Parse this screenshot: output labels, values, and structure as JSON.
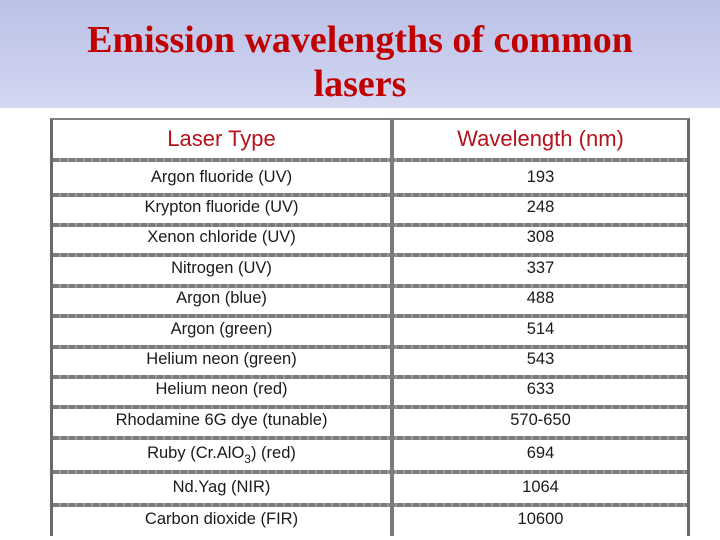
{
  "slide": {
    "title_line1": "Emission wavelengths of common",
    "title_line2": "lasers"
  },
  "table": {
    "headers": {
      "laser_type": "Laser Type",
      "wavelength": "Wavelength (nm)"
    },
    "rows": [
      {
        "laser_type": "Argon fluoride (UV)",
        "wavelength": "193"
      },
      {
        "laser_type": "Krypton fluoride (UV)",
        "wavelength": "248"
      },
      {
        "laser_type": "Xenon chloride (UV)",
        "wavelength": "308"
      },
      {
        "laser_type": "Nitrogen (UV)",
        "wavelength": "337"
      },
      {
        "laser_type": "Argon (blue)",
        "wavelength": "488"
      },
      {
        "laser_type": "Argon (green)",
        "wavelength": "514"
      },
      {
        "laser_type": "Helium neon (green)",
        "wavelength": "543"
      },
      {
        "laser_type": "Helium neon (red)",
        "wavelength": "633"
      },
      {
        "laser_type": "Rhodamine 6G dye (tunable)",
        "wavelength": "570-650"
      },
      {
        "laser_type_prefix": "Ruby (Cr.AlO",
        "laser_type_sub": "3",
        "laser_type_suffix": ") (red)",
        "wavelength": "694"
      },
      {
        "laser_type": "Nd.Yag (NIR)",
        "wavelength": "1064"
      },
      {
        "laser_type": "Carbon dioxide (FIR)",
        "wavelength": "10600"
      }
    ]
  },
  "colors": {
    "title": "#c00000",
    "header_text": "#b5121b",
    "header_band": "#c8cdee"
  }
}
